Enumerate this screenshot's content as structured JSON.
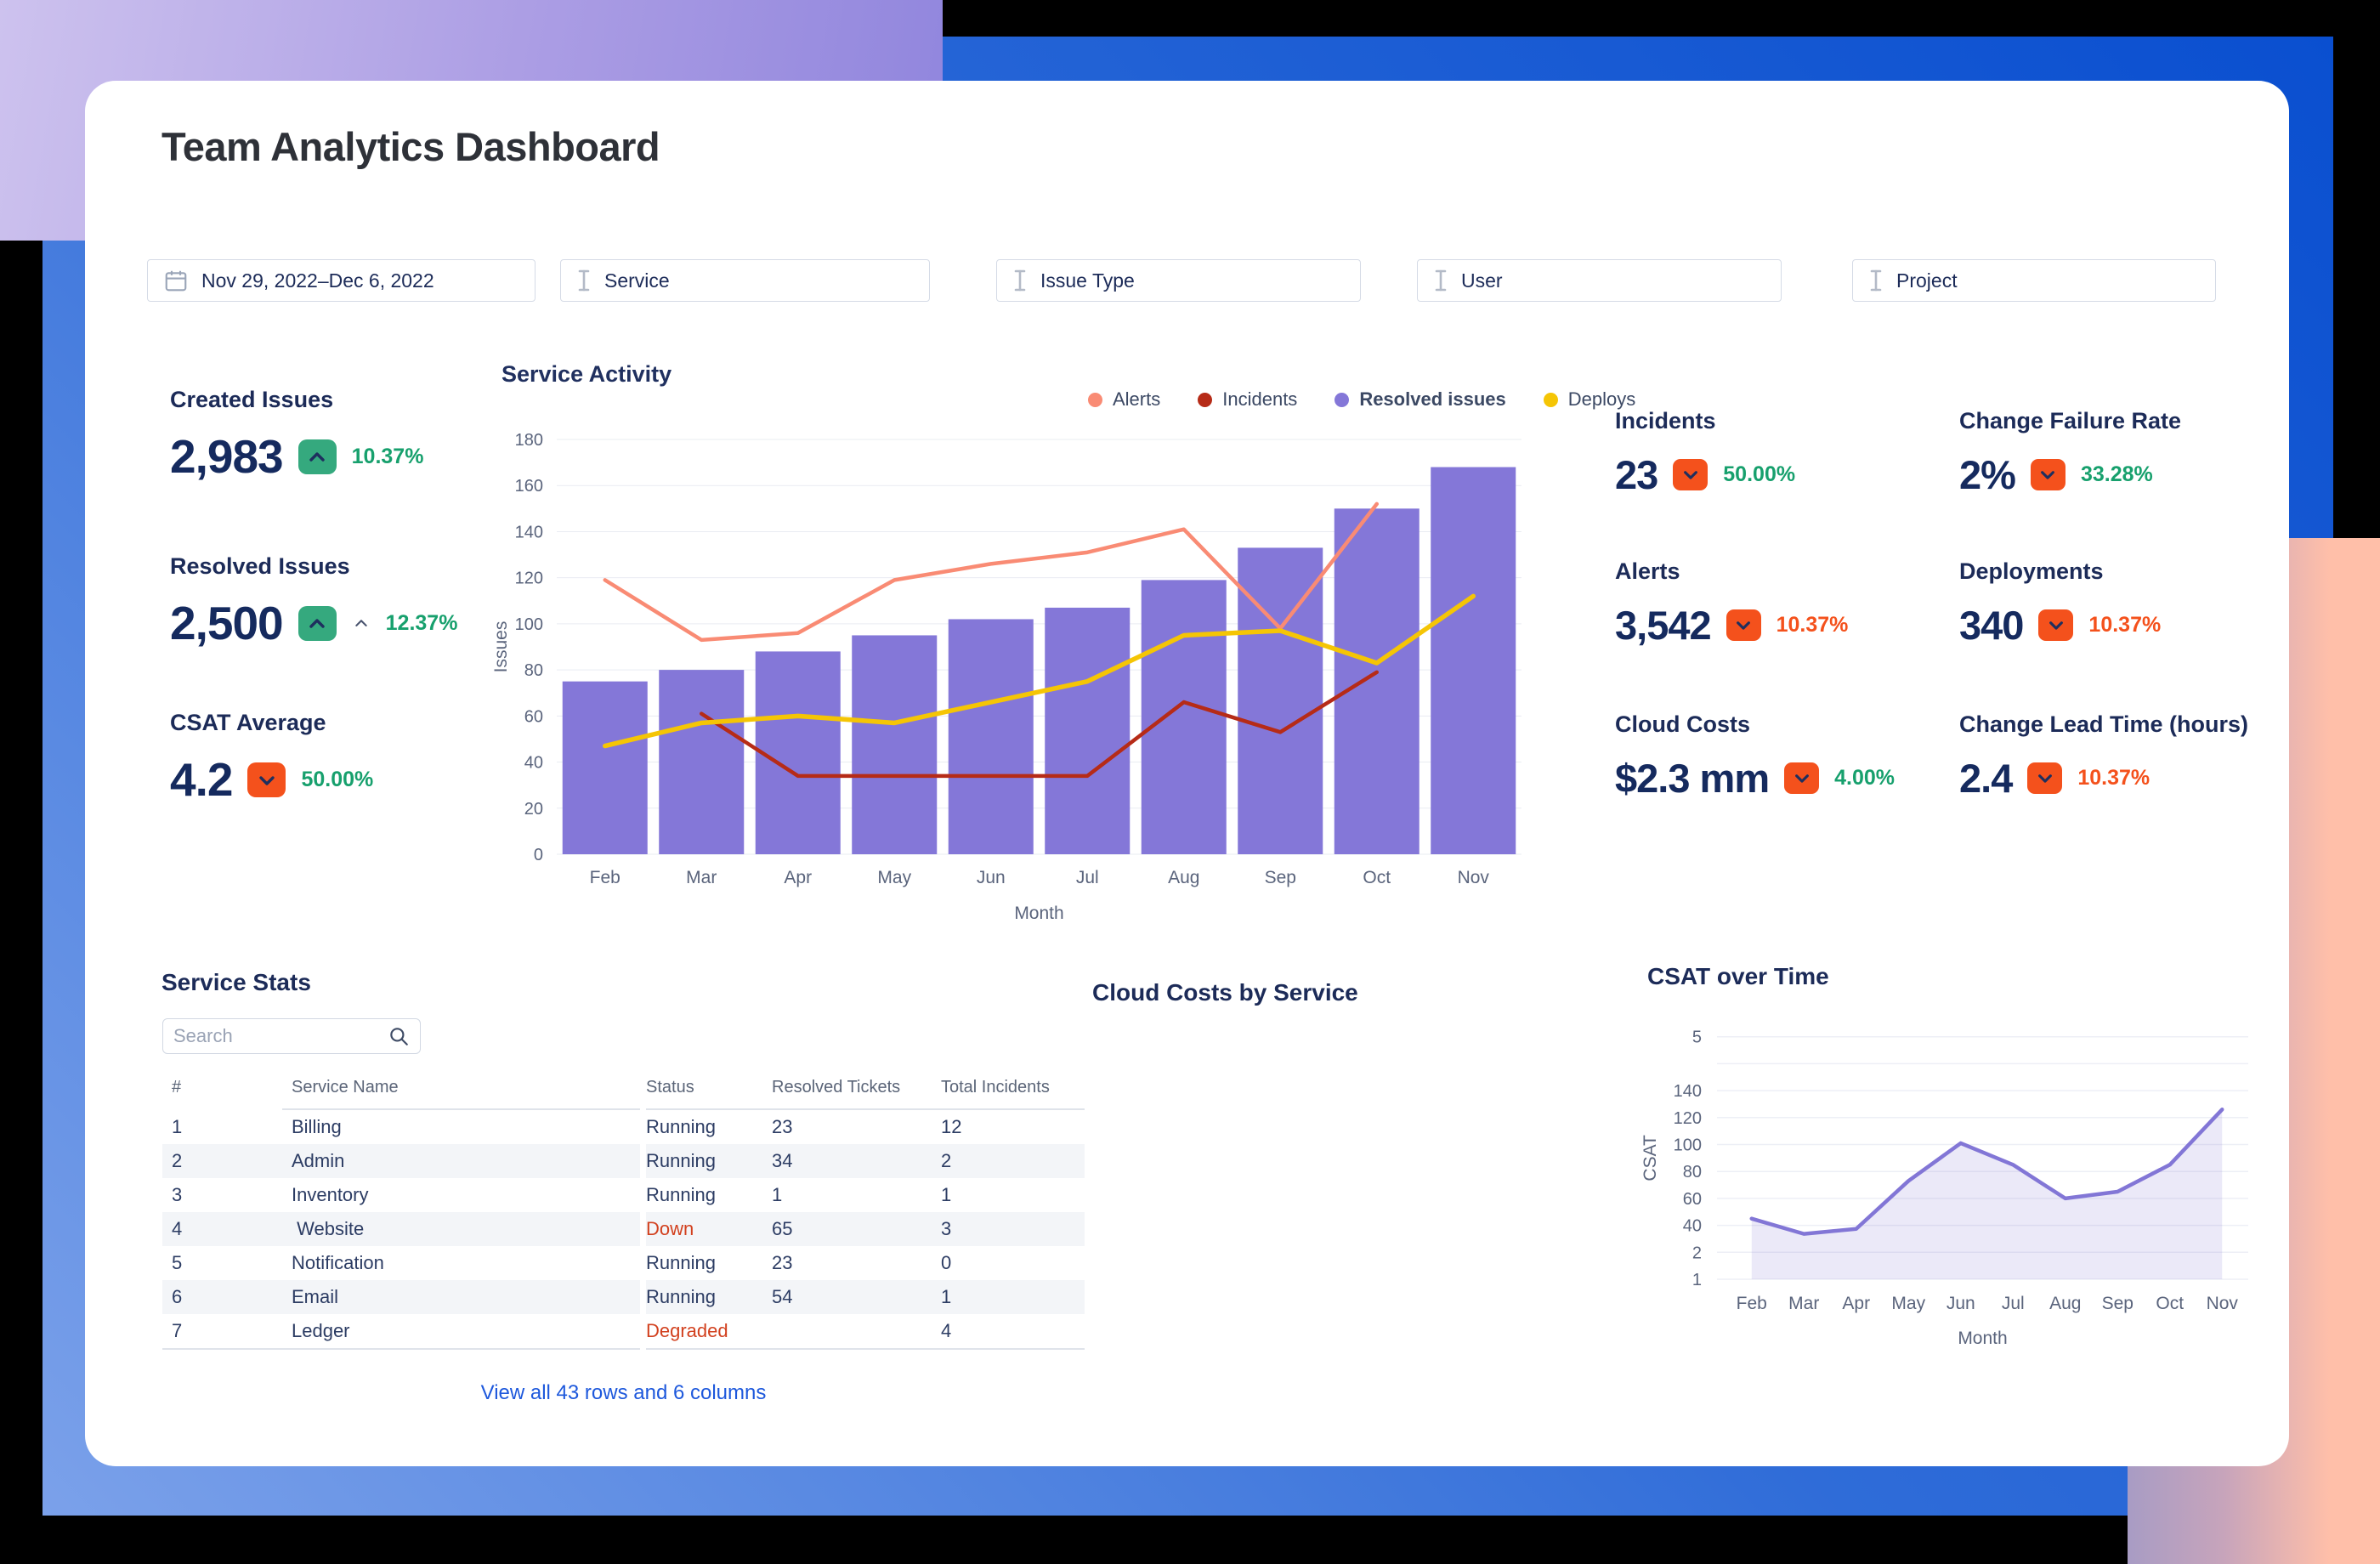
{
  "page": {
    "title": "Team Analytics Dashboard"
  },
  "filters": [
    {
      "name": "date-range",
      "icon": "calendar-icon",
      "value": "Nov 29, 2022–Dec 6, 2022"
    },
    {
      "name": "service",
      "icon": "ibeam-icon",
      "value": "Service"
    },
    {
      "name": "issue-type",
      "icon": "ibeam-icon",
      "value": "Issue Type"
    },
    {
      "name": "user",
      "icon": "ibeam-icon",
      "value": "User"
    },
    {
      "name": "project",
      "icon": "ibeam-icon",
      "value": "Project"
    }
  ],
  "kpis": {
    "left": [
      {
        "label": "Created Issues",
        "value": "2,983",
        "direction": "up",
        "badge_color": "green",
        "pct": "10.37%",
        "pct_color": "green",
        "extra_caret": false
      },
      {
        "label": "Resolved Issues",
        "value": "2,500",
        "direction": "up",
        "badge_color": "green",
        "pct": "12.37%",
        "pct_color": "green",
        "extra_caret": true
      },
      {
        "label": "CSAT Average",
        "value": "4.2",
        "direction": "down",
        "badge_color": "orange",
        "pct": "50.00%",
        "pct_color": "green",
        "extra_caret": false
      }
    ],
    "right": [
      {
        "label": "Incidents",
        "value": "23",
        "direction": "down",
        "badge_color": "orange",
        "pct": "50.00%",
        "pct_color": "green"
      },
      {
        "label": "Change Failure Rate",
        "value": "2%",
        "direction": "down",
        "badge_color": "orange",
        "pct": "33.28%",
        "pct_color": "green"
      },
      {
        "label": "Alerts",
        "value": "3,542",
        "direction": "down",
        "badge_color": "orange",
        "pct": "10.37%",
        "pct_color": "orange"
      },
      {
        "label": "Deployments",
        "value": "340",
        "direction": "down",
        "badge_color": "orange",
        "pct": "10.37%",
        "pct_color": "orange"
      },
      {
        "label": "Cloud Costs",
        "value": "$2.3 mm",
        "direction": "down",
        "badge_color": "orange",
        "pct": "4.00%",
        "pct_color": "green"
      },
      {
        "label": "Change Lead Time (hours)",
        "value": "2.4",
        "direction": "down",
        "badge_color": "orange",
        "pct": "10.37%",
        "pct_color": "orange"
      }
    ]
  },
  "chart_data": [
    {
      "id": "service-activity",
      "type": "bar+line",
      "title": "Service Activity",
      "categories": [
        "Feb",
        "Mar",
        "Apr",
        "May",
        "Jun",
        "Jul",
        "Aug",
        "Sep",
        "Oct",
        "Nov"
      ],
      "series": [
        {
          "name": "Alerts",
          "type": "line",
          "color": "#f98b74",
          "values": [
            119,
            93,
            96,
            119,
            126,
            131,
            141,
            98,
            152,
            null
          ]
        },
        {
          "name": "Incidents",
          "type": "line",
          "color": "#b62b17",
          "values": [
            null,
            61,
            34,
            34,
            34,
            34,
            66,
            53,
            79,
            null
          ]
        },
        {
          "name": "Resolved issues",
          "type": "bar",
          "color": "#8477d8",
          "values": [
            75,
            80,
            88,
            95,
            102,
            107,
            119,
            133,
            150,
            168
          ]
        },
        {
          "name": "Deploys",
          "type": "line",
          "color": "#f5c505",
          "values": [
            47,
            57,
            60,
            57,
            66,
            75,
            95,
            97,
            83,
            112
          ]
        }
      ],
      "xlabel": "Month",
      "ylabel": "Issues",
      "ylim": [
        0,
        180
      ],
      "ytick_step": 20,
      "grid": true,
      "legend_position": "top-right",
      "legend_order": [
        "Alerts",
        "Incidents",
        "Resolved issues",
        "Deploys"
      ],
      "legend_bold": [
        "Resolved issues"
      ]
    },
    {
      "id": "csat-over-time",
      "type": "area",
      "title": "CSAT over Time",
      "categories": [
        "Feb",
        "Mar",
        "Apr",
        "May",
        "Jun",
        "Jul",
        "Aug",
        "Sep",
        "Oct",
        "Nov"
      ],
      "values": [
        45,
        28,
        35,
        73,
        101,
        85,
        60,
        65,
        85,
        126
      ],
      "color": "#8276d6",
      "fill": "rgba(130,118,214,0.16)",
      "xlabel": "Month",
      "ylabel": "CSAT",
      "ytick_labels_bottom_to_top": [
        "1",
        "2",
        "40",
        "60",
        "80",
        "100",
        "120",
        "140",
        "",
        "5"
      ],
      "grid": true
    }
  ],
  "service_stats": {
    "title": "Service Stats",
    "columns": [
      "#",
      "Service Name",
      "Status",
      "Resolved Tickets",
      "Total Incidents"
    ],
    "rows": [
      [
        "1",
        "Billing",
        "Running",
        "23",
        "12"
      ],
      [
        "2",
        "Admin",
        "Running",
        "34",
        "2"
      ],
      [
        "3",
        "Inventory",
        "Running",
        "1",
        "1"
      ],
      [
        "4",
        " Website",
        "Down",
        "65",
        "3"
      ],
      [
        "5",
        "Notification",
        "Running",
        "23",
        "0"
      ],
      [
        "6",
        "Email",
        "Running",
        "54",
        "1"
      ],
      [
        "7",
        "Ledger",
        "Degraded",
        "",
        "4"
      ]
    ],
    "red_statuses": [
      "Down",
      "Degraded"
    ],
    "footer_link": "View all 43 rows and 6 columns"
  },
  "cloud_costs": {
    "title": "Cloud Costs by Service"
  },
  "search": {
    "placeholder": "Search"
  },
  "colors": {
    "badge_green": "#35a97e",
    "badge_orange": "#f4511c",
    "pct_green": "#17a06d",
    "pct_orange": "#f4511c",
    "bar_purple": "#8477d8",
    "line_salmon": "#f98b74",
    "line_dark_red": "#b62b17",
    "line_gold": "#f5c505",
    "status_red": "#d2401e",
    "link_blue": "#1d58dc",
    "navy_text": "#1c2b58"
  }
}
